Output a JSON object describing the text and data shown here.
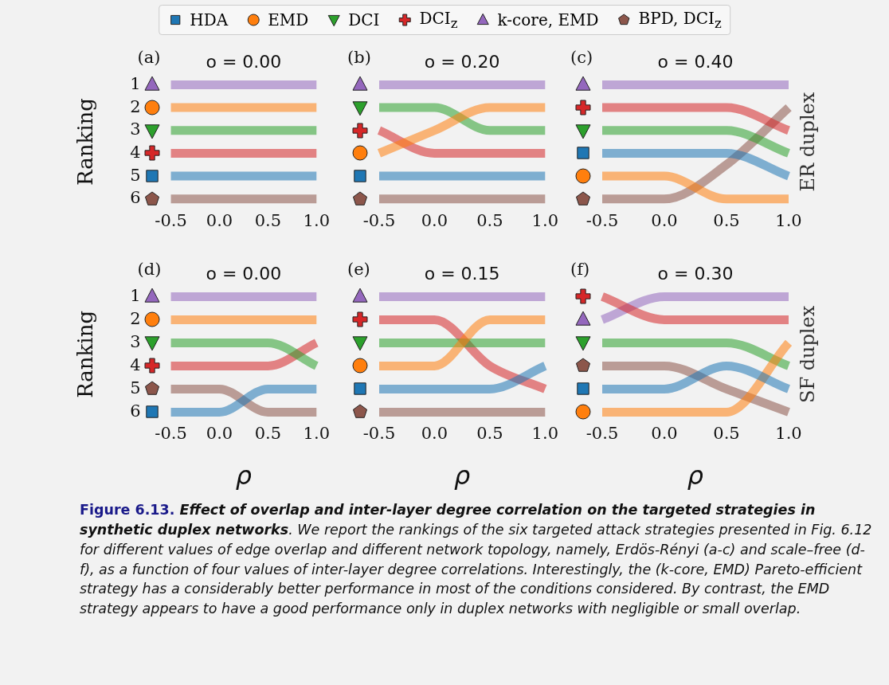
{
  "chart_data": [
    {
      "type": "line",
      "title": "o = 0.00",
      "ylabel": "Ranking",
      "annotations": [
        "(a)"
      ],
      "legend": "top",
      "x": [
        -0.5,
        0,
        0.5,
        1.0
      ],
      "xlim": [
        -0.5,
        1.0
      ],
      "xticks": [
        {
          "value": -0.5,
          "label": "-0.5"
        },
        {
          "value": 0,
          "label": "0.0"
        },
        {
          "value": 0.5,
          "label": "0.5"
        },
        {
          "value": 1.0,
          "label": "1.0"
        }
      ],
      "ylim": [
        6,
        1
      ],
      "yticks": [
        1,
        2,
        3,
        4,
        5,
        6
      ],
      "series": [
        {
          "name": "HDA",
          "color": "#1f77b4",
          "values": [
            5,
            5,
            5,
            5
          ]
        },
        {
          "name": "EMD",
          "color": "#ff7f0e",
          "values": [
            2,
            2,
            2,
            2
          ]
        },
        {
          "name": "DCI",
          "color": "#2ca02c",
          "values": [
            3,
            3,
            3,
            3
          ]
        },
        {
          "name": "DCI$_{z}$",
          "color": "#d62728",
          "values": [
            4,
            4,
            4,
            4
          ]
        },
        {
          "name": "k-core, EMD",
          "color": "#9467bd",
          "values": [
            1,
            1,
            1,
            1
          ]
        },
        {
          "name": "BPD, DCI$_{z}$",
          "color": "#8c564b",
          "values": [
            6,
            6,
            6,
            6
          ]
        }
      ]
    },
    {
      "type": "line",
      "title": "o = 0.20",
      "annotations": [
        "(b)"
      ],
      "tick_labels": "x",
      "x": [
        -0.5,
        0,
        0.5,
        1.0
      ],
      "xlim": [
        -0.5,
        1.0
      ],
      "xticks": [
        {
          "value": -0.5,
          "label": "-0.5"
        },
        {
          "value": 0,
          "label": "0.0"
        },
        {
          "value": 0.5,
          "label": "0.5"
        },
        {
          "value": 1.0,
          "label": "1.0"
        }
      ],
      "ylim": [
        6,
        1
      ],
      "yticks": [
        1,
        2,
        3,
        4,
        5,
        6
      ],
      "series": [
        {
          "color": "#1f77b4",
          "values": [
            5,
            5,
            5,
            5
          ]
        },
        {
          "color": "#ff7f0e",
          "values": [
            4,
            3,
            2,
            2
          ]
        },
        {
          "color": "#2ca02c",
          "values": [
            2,
            2,
            3,
            3
          ]
        },
        {
          "color": "#d62728",
          "values": [
            3,
            4,
            4,
            4
          ]
        },
        {
          "color": "#9467bd",
          "values": [
            1,
            1,
            1,
            1
          ]
        },
        {
          "color": "#8c564b",
          "values": [
            6,
            6,
            6,
            6
          ]
        }
      ]
    },
    {
      "type": "line",
      "title": "o = 0.40",
      "annotations": [
        "(c)",
        "ER duplex"
      ],
      "tick_labels": "x",
      "x": [
        -0.5,
        0,
        0.5,
        1.0
      ],
      "xlim": [
        -0.5,
        1.0
      ],
      "xticks": [
        {
          "value": -0.5,
          "label": "-0.5"
        },
        {
          "value": 0,
          "label": "0.0"
        },
        {
          "value": 0.5,
          "label": "0.5"
        },
        {
          "value": 1.0,
          "label": "1.0"
        }
      ],
      "ylim": [
        6,
        1
      ],
      "yticks": [
        1,
        2,
        3,
        4,
        5,
        6
      ],
      "series": [
        {
          "color": "#1f77b4",
          "values": [
            4,
            4,
            4,
            5
          ]
        },
        {
          "color": "#ff7f0e",
          "values": [
            5,
            5,
            6,
            6
          ]
        },
        {
          "color": "#2ca02c",
          "values": [
            3,
            3,
            3,
            4
          ]
        },
        {
          "color": "#d62728",
          "values": [
            2,
            2,
            2,
            3
          ]
        },
        {
          "color": "#9467bd",
          "values": [
            1,
            1,
            1,
            1
          ]
        },
        {
          "color": "#8c564b",
          "values": [
            6,
            6,
            4.5,
            2
          ]
        }
      ]
    },
    {
      "type": "line",
      "title": "o = 0.00",
      "ylabel": "Ranking",
      "xlabel": "ρ",
      "annotations": [
        "(d)"
      ],
      "x": [
        -0.5,
        0,
        0.5,
        1.0
      ],
      "xlim": [
        -0.5,
        1.0
      ],
      "xticks": [
        {
          "value": -0.5,
          "label": "-0.5"
        },
        {
          "value": 0,
          "label": "0.0"
        },
        {
          "value": 0.5,
          "label": "0.5"
        },
        {
          "value": 1.0,
          "label": "1.0"
        }
      ],
      "ylim": [
        6,
        1
      ],
      "yticks": [
        1,
        2,
        3,
        4,
        5,
        6
      ],
      "series": [
        {
          "color": "#1f77b4",
          "values": [
            6,
            6,
            5,
            5
          ]
        },
        {
          "color": "#ff7f0e",
          "values": [
            2,
            2,
            2,
            2
          ]
        },
        {
          "color": "#2ca02c",
          "values": [
            3,
            3,
            3,
            4
          ]
        },
        {
          "color": "#d62728",
          "values": [
            4,
            4,
            4,
            3
          ]
        },
        {
          "color": "#9467bd",
          "values": [
            1,
            1,
            1,
            1
          ]
        },
        {
          "color": "#8c564b",
          "values": [
            5,
            5,
            6,
            6
          ]
        }
      ]
    },
    {
      "type": "line",
      "title": "o = 0.15",
      "xlabel": "ρ",
      "annotations": [
        "(e)"
      ],
      "tick_labels": "x",
      "x": [
        -0.5,
        0,
        0.5,
        1.0
      ],
      "xlim": [
        -0.5,
        1.0
      ],
      "xticks": [
        {
          "value": -0.5,
          "label": "-0.5"
        },
        {
          "value": 0,
          "label": "0.0"
        },
        {
          "value": 0.5,
          "label": "0.5"
        },
        {
          "value": 1.0,
          "label": "1.0"
        }
      ],
      "ylim": [
        6,
        1
      ],
      "yticks": [
        1,
        2,
        3,
        4,
        5,
        6
      ],
      "series": [
        {
          "color": "#1f77b4",
          "values": [
            5,
            5,
            5,
            4
          ]
        },
        {
          "color": "#ff7f0e",
          "values": [
            4,
            4,
            2,
            2
          ]
        },
        {
          "color": "#2ca02c",
          "values": [
            3,
            3,
            3,
            3
          ]
        },
        {
          "color": "#d62728",
          "values": [
            2,
            2,
            4,
            5
          ]
        },
        {
          "color": "#9467bd",
          "values": [
            1,
            1,
            1,
            1
          ]
        },
        {
          "color": "#8c564b",
          "values": [
            6,
            6,
            6,
            6
          ]
        }
      ]
    },
    {
      "type": "line",
      "title": "o = 0.30",
      "xlabel": "ρ",
      "annotations": [
        "(f)",
        "SF duplex"
      ],
      "tick_labels": "x",
      "x": [
        -0.5,
        0,
        0.5,
        1.0
      ],
      "xlim": [
        -0.5,
        1.0
      ],
      "xticks": [
        {
          "value": -0.5,
          "label": "-0.5"
        },
        {
          "value": 0,
          "label": "0.0"
        },
        {
          "value": 0.5,
          "label": "0.5"
        },
        {
          "value": 1.0,
          "label": "1.0"
        }
      ],
      "ylim": [
        6,
        1
      ],
      "yticks": [
        1,
        2,
        3,
        4,
        5,
        6
      ],
      "series": [
        {
          "color": "#1f77b4",
          "values": [
            5,
            5,
            4,
            5
          ]
        },
        {
          "color": "#ff7f0e",
          "values": [
            6,
            6,
            6,
            3
          ]
        },
        {
          "color": "#2ca02c",
          "values": [
            3,
            3,
            3,
            4
          ]
        },
        {
          "color": "#d62728",
          "values": [
            1,
            2,
            2,
            2
          ]
        },
        {
          "color": "#9467bd",
          "values": [
            2,
            1,
            1,
            1
          ]
        },
        {
          "color": "#8c564b",
          "values": [
            4,
            4,
            5,
            6
          ]
        }
      ]
    },
    {
      "type": "other",
      "title": "Figure 6.13.",
      "subtitle": "Effect of overlap and inter-layer degree correlation on the targeted strategies in synthetic duplex networks",
      "annotations": [
        ". We report the rankings of the six targeted attack strategies presented in Fig. 6.12 for different values of edge overlap and different network topology, namely, Erdös-Rényi (a-c) and scale–free (d-f), as a function of four values of inter-layer degree correlations. Interestingly, the (k-core, EMD) Pareto-efficient strategy has a considerably better performance in most of the conditions considered. By contrast, the EMD strategy appears to have a good performance only in duplex networks with negligible or small overlap."
      ]
    }
  ]
}
